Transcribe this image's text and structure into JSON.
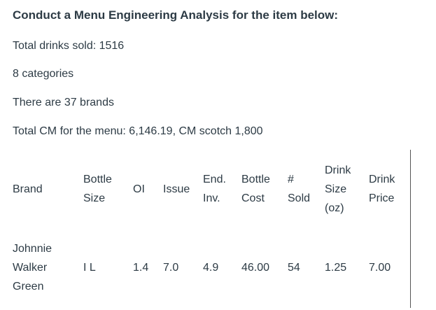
{
  "intro": {
    "heading": "Conduct a Menu Engineering Analysis for the item below:",
    "total_drinks": "Total drinks sold: 1516",
    "categories": "8 categories",
    "brands": "There are 37 brands",
    "total_cm": "Total CM for the menu:  6,146.19,  CM scotch 1,800"
  },
  "table": {
    "headers": {
      "brand": "Brand",
      "bottle_size_1": "Bottle",
      "bottle_size_2": "Size",
      "oi": "OI",
      "issue": "Issue",
      "end_inv_1": "End.",
      "end_inv_2": "Inv.",
      "bottle_cost_1": "Bottle",
      "bottle_cost_2": "Cost",
      "sold_1": "#",
      "sold_2": "Sold",
      "drink_size_1": "Drink",
      "drink_size_2": "Size",
      "drink_size_3": "(oz)",
      "drink_price_1": "Drink",
      "drink_price_2": "Price"
    },
    "row": {
      "brand_1": "Johnnie",
      "brand_2": "Walker",
      "brand_3": "Green",
      "bottle_size": "I L",
      "oi": "1.4",
      "issue": "7.0",
      "end_inv": "4.9",
      "bottle_cost": "46.00",
      "sold": "54",
      "drink_size": "1.25",
      "drink_price": "7.00"
    }
  }
}
